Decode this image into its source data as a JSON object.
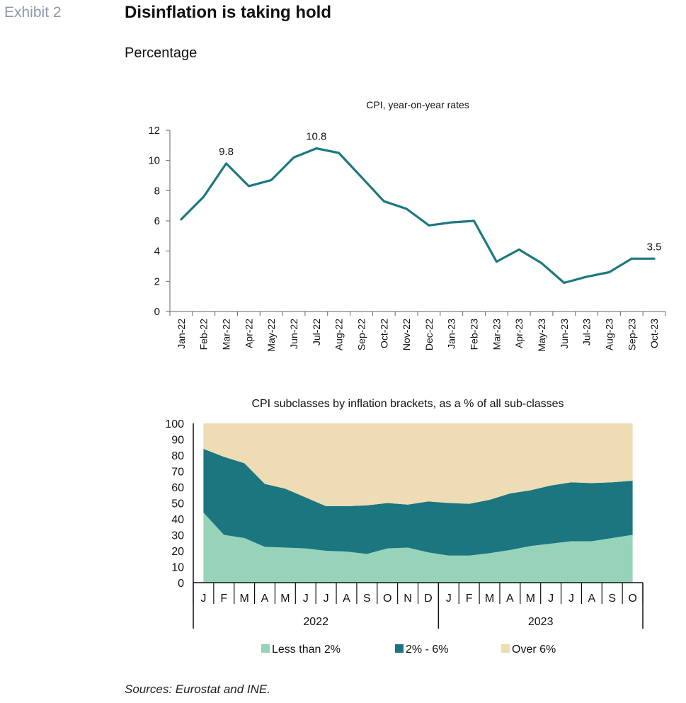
{
  "header": {
    "exhibit": "Exhibit 2",
    "title": "Disinflation is taking hold",
    "subtitle": "Percentage"
  },
  "footer": {
    "sources": "Sources: Eurostat and INE."
  },
  "colors": {
    "line": "#1d7880",
    "less_than_2": "#96d3b8",
    "between_2_6": "#1b7680",
    "over_6": "#eedcb4"
  },
  "chart_data": [
    {
      "type": "line",
      "title": "CPI, year-on-year rates",
      "x": [
        "Jan-22",
        "Feb-22",
        "Mar-22",
        "Apr-22",
        "May-22",
        "Jun-22",
        "Jul-22",
        "Aug-22",
        "Sep-22",
        "Oct-22",
        "Nov-22",
        "Dec-22",
        "Jan-23",
        "Feb-23",
        "Mar-23",
        "Apr-23",
        "May-23",
        "Jun-23",
        "Jul-23",
        "Aug-23",
        "Sep-23",
        "Oct-23"
      ],
      "series": [
        {
          "values": [
            6.1,
            7.6,
            9.8,
            8.3,
            8.7,
            10.2,
            10.8,
            10.5,
            8.9,
            7.3,
            6.8,
            5.7,
            5.9,
            6.0,
            3.3,
            4.1,
            3.2,
            1.9,
            2.3,
            2.6,
            3.5,
            3.5
          ]
        }
      ],
      "annotations": [
        {
          "index": 2,
          "label": "9.8"
        },
        {
          "index": 6,
          "label": "10.8"
        },
        {
          "index": 21,
          "label": "3.5"
        }
      ],
      "ylim": [
        0,
        12
      ],
      "yticks": [
        "0",
        "2",
        "4",
        "6",
        "8",
        "10",
        "12"
      ],
      "grid": false
    },
    {
      "type": "area",
      "stacked": true,
      "title": "CPI subclasses by inflation brackets, as a % of all sub-classes",
      "categories": [
        "J",
        "F",
        "M",
        "A",
        "M",
        "J",
        "J",
        "A",
        "S",
        "O",
        "N",
        "D",
        "J",
        "F",
        "M",
        "A",
        "M",
        "J",
        "J",
        "A",
        "S",
        "O"
      ],
      "years": [
        "2022",
        "2023"
      ],
      "series": [
        {
          "name": "Less than 2%",
          "values": [
            44,
            30,
            28,
            22.5,
            22,
            21.5,
            20,
            19.5,
            18,
            21.5,
            22,
            19,
            17,
            17,
            18.5,
            20.5,
            23,
            24.5,
            26,
            26,
            28,
            30
          ]
        },
        {
          "name": "2% - 6%",
          "values": [
            40,
            49,
            47,
            39.5,
            37,
            32,
            28,
            28.5,
            30.5,
            28.5,
            27,
            32,
            33,
            32.5,
            33.5,
            35.5,
            35,
            36.5,
            37,
            36.5,
            35,
            34
          ]
        },
        {
          "name": "Over 6%",
          "values": [
            16,
            21,
            25,
            38,
            41,
            46.5,
            52,
            52,
            51.5,
            50,
            51,
            49,
            50,
            50.5,
            48,
            44,
            42,
            39,
            37,
            37.5,
            37,
            36
          ]
        }
      ],
      "ylim": [
        0,
        100
      ],
      "yticks": [
        "0",
        "10",
        "20",
        "30",
        "40",
        "50",
        "60",
        "70",
        "80",
        "90",
        "100"
      ],
      "legend": "bottom",
      "grid": false
    }
  ]
}
